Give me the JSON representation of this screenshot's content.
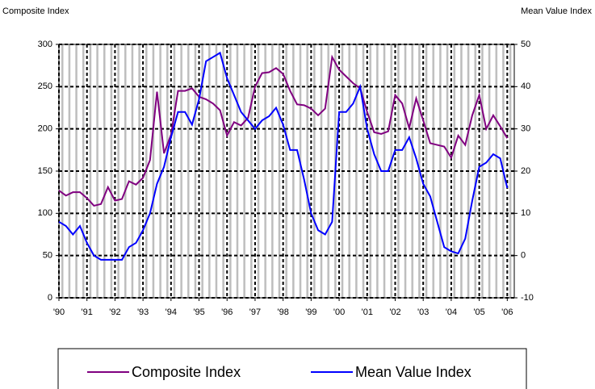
{
  "chart_data": {
    "type": "line",
    "ylabel": "Composite Index",
    "y2label": "Mean Value Index",
    "x": [
      1990,
      1990.25,
      1990.5,
      1990.75,
      1991,
      1991.25,
      1991.5,
      1991.75,
      1992,
      1992.25,
      1992.5,
      1992.75,
      1993,
      1993.25,
      1993.5,
      1993.75,
      1994,
      1994.25,
      1994.5,
      1994.75,
      1995,
      1995.25,
      1995.5,
      1995.75,
      1996,
      1996.25,
      1996.5,
      1996.75,
      1997,
      1997.25,
      1997.5,
      1997.75,
      1998,
      1998.25,
      1998.5,
      1998.75,
      1999,
      1999.25,
      1999.5,
      1999.75,
      2000,
      2000.25,
      2000.5,
      2000.75,
      2001,
      2001.25,
      2001.5,
      2001.75,
      2002,
      2002.25,
      2002.5,
      2002.75,
      2003,
      2003.25,
      2003.5,
      2003.75,
      2004,
      2004.25,
      2004.5,
      2004.75,
      2005,
      2005.25,
      2005.5,
      2005.75,
      2006
    ],
    "series": [
      {
        "name": "Composite Index",
        "color": "#800080",
        "axis": "y",
        "values": [
          127,
          121,
          125,
          125,
          118,
          109,
          111,
          131,
          115,
          117,
          138,
          134,
          142,
          163,
          244,
          171,
          193,
          245,
          245,
          248,
          238,
          235,
          230,
          222,
          192,
          208,
          204,
          213,
          250,
          266,
          267,
          272,
          265,
          245,
          229,
          228,
          224,
          216,
          224,
          285,
          270,
          262,
          254,
          248,
          220,
          196,
          194,
          197,
          240,
          230,
          201,
          236,
          210,
          183,
          181,
          179,
          166,
          192,
          181,
          216,
          240,
          200,
          216,
          203,
          189
        ]
      },
      {
        "name": "Mean Value Index",
        "color": "#0000ff",
        "axis": "y2",
        "values": [
          8,
          7,
          5,
          7,
          3,
          0,
          -1,
          -1,
          -1,
          -1,
          2,
          3,
          6,
          10,
          17,
          21,
          28,
          34,
          34,
          31,
          37,
          46,
          47,
          48,
          42,
          38,
          34,
          32,
          30,
          32,
          33,
          35,
          31,
          25,
          25,
          18,
          10,
          6,
          5,
          8,
          34,
          34,
          36,
          40,
          30,
          24,
          20,
          20,
          25,
          25,
          28,
          23,
          17,
          14,
          8,
          2,
          1,
          0.5,
          4,
          13,
          21,
          22,
          24,
          23,
          16
        ]
      }
    ],
    "xlim": [
      1990,
      2006.25
    ],
    "xticks": [
      {
        "value": 1990,
        "label": "'90"
      },
      {
        "value": 1991,
        "label": "'91"
      },
      {
        "value": 1992,
        "label": "'92"
      },
      {
        "value": 1993,
        "label": "'93"
      },
      {
        "value": 1994,
        "label": "'94"
      },
      {
        "value": 1995,
        "label": "'95"
      },
      {
        "value": 1996,
        "label": "'96"
      },
      {
        "value": 1997,
        "label": "'97"
      },
      {
        "value": 1998,
        "label": "'98"
      },
      {
        "value": 1999,
        "label": "'99"
      },
      {
        "value": 2000,
        "label": "'00"
      },
      {
        "value": 2001,
        "label": "'01"
      },
      {
        "value": 2002,
        "label": "'02"
      },
      {
        "value": 2003,
        "label": "'03"
      },
      {
        "value": 2004,
        "label": "'04"
      },
      {
        "value": 2005,
        "label": "'05"
      },
      {
        "value": 2006,
        "label": "'06"
      }
    ],
    "ylim": [
      0,
      300
    ],
    "yticks": [
      0,
      50,
      100,
      150,
      200,
      250,
      300
    ],
    "y2lim": [
      -10,
      50
    ],
    "y2ticks": [
      -10,
      0,
      10,
      20,
      30,
      40,
      50
    ],
    "grid": true
  }
}
